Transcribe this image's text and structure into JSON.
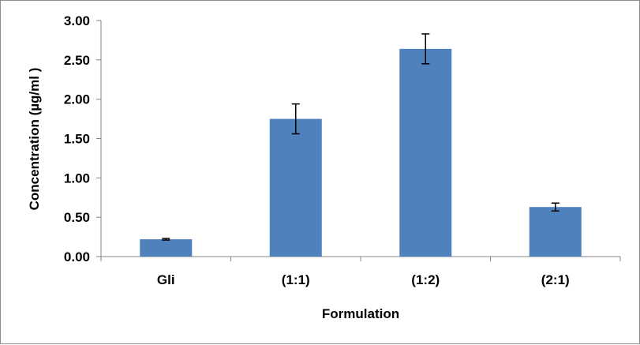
{
  "chart_data": {
    "type": "bar",
    "title": "",
    "xlabel": "Formulation",
    "ylabel": "Concentration (µg/ml )",
    "categories": [
      "Gli",
      "(1:1)",
      "(1:2)",
      "(2:1)"
    ],
    "values": [
      0.22,
      1.75,
      2.64,
      0.63
    ],
    "errors": [
      0.01,
      0.19,
      0.19,
      0.05
    ],
    "ylim": [
      0,
      3.0
    ],
    "yticks": [
      "0.00",
      "0.50",
      "1.00",
      "1.50",
      "2.00",
      "2.50",
      "3.00"
    ],
    "grid": false,
    "legend": "none",
    "bar_color": "#4f81bd"
  }
}
